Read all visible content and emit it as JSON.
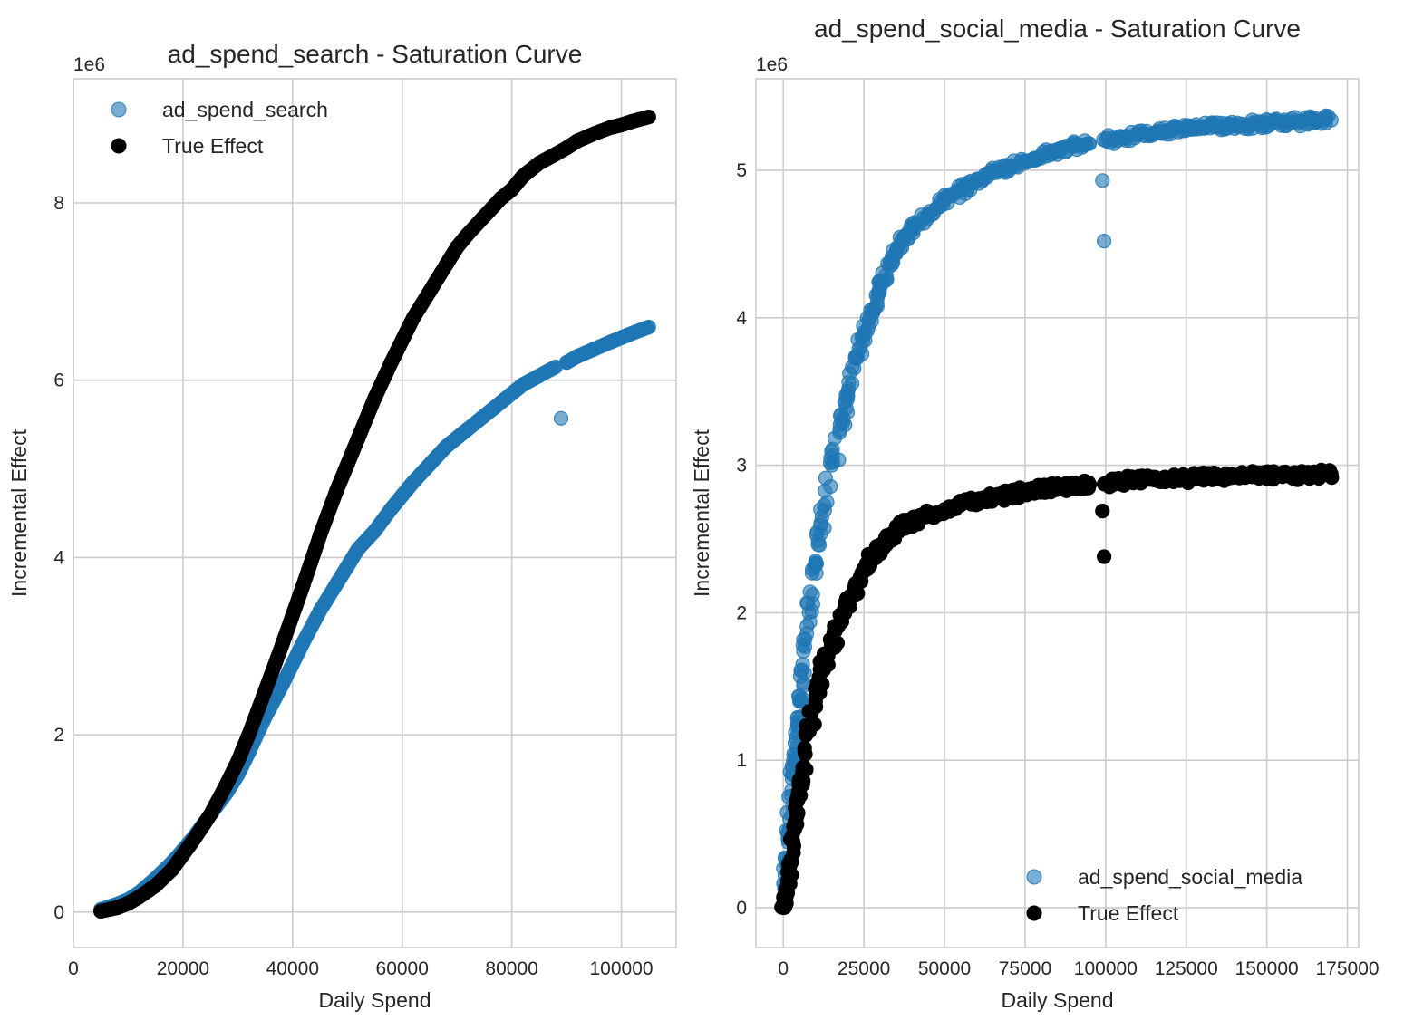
{
  "chart_data": [
    {
      "type": "scatter",
      "title": "ad_spend_search - Saturation Curve",
      "xlabel": "Daily Spend",
      "ylabel": "Incremental Effect",
      "y_offset_label": "1e6",
      "xlim": [
        0,
        110000
      ],
      "ylim": [
        -400000,
        9400000
      ],
      "xticks": [
        0,
        20000,
        40000,
        60000,
        80000,
        100000
      ],
      "xtick_labels": [
        "0",
        "20000",
        "40000",
        "60000",
        "80000",
        "100000"
      ],
      "yticks": [
        0,
        2000000,
        4000000,
        6000000,
        8000000
      ],
      "ytick_labels": [
        "0",
        "2",
        "4",
        "6",
        "8"
      ],
      "grid": true,
      "legend_position": "upper-left",
      "series": [
        {
          "name": "ad_spend_search",
          "color": "#1f77b4",
          "style": "blue-scatter",
          "points": [
            [
              5000,
              30000
            ],
            [
              8000,
              90000
            ],
            [
              10000,
              140000
            ],
            [
              12000,
              220000
            ],
            [
              15000,
              380000
            ],
            [
              18000,
              560000
            ],
            [
              20000,
              700000
            ],
            [
              22000,
              850000
            ],
            [
              25000,
              1100000
            ],
            [
              28000,
              1350000
            ],
            [
              30000,
              1550000
            ],
            [
              32000,
              1800000
            ],
            [
              35000,
              2200000
            ],
            [
              38000,
              2550000
            ],
            [
              40000,
              2800000
            ],
            [
              42000,
              3050000
            ],
            [
              45000,
              3400000
            ],
            [
              48000,
              3700000
            ],
            [
              50000,
              3900000
            ],
            [
              52000,
              4100000
            ],
            [
              55000,
              4300000
            ],
            [
              58000,
              4550000
            ],
            [
              60000,
              4700000
            ],
            [
              62000,
              4850000
            ],
            [
              65000,
              5050000
            ],
            [
              68000,
              5250000
            ],
            [
              70000,
              5350000
            ],
            [
              72000,
              5450000
            ],
            [
              75000,
              5600000
            ],
            [
              78000,
              5750000
            ],
            [
              80000,
              5850000
            ],
            [
              82000,
              5950000
            ],
            [
              85000,
              6050000
            ],
            [
              88000,
              6150000
            ],
            [
              89000,
              5570000
            ],
            [
              90000,
              6200000
            ],
            [
              92000,
              6270000
            ],
            [
              95000,
              6350000
            ],
            [
              98000,
              6430000
            ],
            [
              100000,
              6480000
            ],
            [
              102000,
              6530000
            ],
            [
              105000,
              6600000
            ]
          ]
        },
        {
          "name": "True Effect",
          "color": "#000000",
          "style": "black-scatter",
          "points": [
            [
              5000,
              10000
            ],
            [
              8000,
              50000
            ],
            [
              10000,
              100000
            ],
            [
              12000,
              170000
            ],
            [
              15000,
              300000
            ],
            [
              18000,
              480000
            ],
            [
              20000,
              650000
            ],
            [
              22000,
              820000
            ],
            [
              25000,
              1100000
            ],
            [
              28000,
              1450000
            ],
            [
              30000,
              1700000
            ],
            [
              32000,
              2000000
            ],
            [
              35000,
              2500000
            ],
            [
              38000,
              3000000
            ],
            [
              40000,
              3350000
            ],
            [
              42000,
              3700000
            ],
            [
              45000,
              4250000
            ],
            [
              48000,
              4750000
            ],
            [
              50000,
              5050000
            ],
            [
              52000,
              5350000
            ],
            [
              55000,
              5800000
            ],
            [
              58000,
              6200000
            ],
            [
              60000,
              6450000
            ],
            [
              62000,
              6700000
            ],
            [
              65000,
              7000000
            ],
            [
              68000,
              7300000
            ],
            [
              70000,
              7500000
            ],
            [
              72000,
              7650000
            ],
            [
              75000,
              7850000
            ],
            [
              78000,
              8050000
            ],
            [
              80000,
              8150000
            ],
            [
              82000,
              8300000
            ],
            [
              85000,
              8450000
            ],
            [
              88000,
              8550000
            ],
            [
              90000,
              8620000
            ],
            [
              92000,
              8700000
            ],
            [
              95000,
              8780000
            ],
            [
              98000,
              8850000
            ],
            [
              100000,
              8880000
            ],
            [
              102000,
              8920000
            ],
            [
              105000,
              8970000
            ]
          ]
        }
      ]
    },
    {
      "type": "scatter",
      "title": "ad_spend_social_media - Saturation Curve",
      "xlabel": "Daily Spend",
      "ylabel": "Incremental Effect",
      "y_offset_label": "1e6",
      "xlim": [
        -8500,
        178500
      ],
      "ylim": [
        -270000,
        5620000
      ],
      "xticks": [
        0,
        25000,
        50000,
        75000,
        100000,
        125000,
        150000,
        175000
      ],
      "xtick_labels": [
        "0",
        "25000",
        "50000",
        "75000",
        "100000",
        "125000",
        "150000",
        "175000"
      ],
      "yticks": [
        0,
        1000000,
        2000000,
        3000000,
        4000000,
        5000000
      ],
      "ytick_labels": [
        "0",
        "1",
        "2",
        "3",
        "4",
        "5"
      ],
      "grid": true,
      "legend_position": "lower-right",
      "series": [
        {
          "name": "ad_spend_social_media",
          "color": "#1f77b4",
          "style": "blue-scatter",
          "points": [
            [
              0,
              0
            ],
            [
              1000,
              300000
            ],
            [
              2000,
              600000
            ],
            [
              3000,
              900000
            ],
            [
              4000,
              1150000
            ],
            [
              5000,
              1400000
            ],
            [
              6000,
              1650000
            ],
            [
              8000,
              2000000
            ],
            [
              10000,
              2350000
            ],
            [
              12000,
              2650000
            ],
            [
              15000,
              3000000
            ],
            [
              18000,
              3300000
            ],
            [
              20000,
              3500000
            ],
            [
              23000,
              3750000
            ],
            [
              25000,
              3900000
            ],
            [
              28000,
              4050000
            ],
            [
              30000,
              4200000
            ],
            [
              33000,
              4350000
            ],
            [
              35000,
              4450000
            ],
            [
              38000,
              4550000
            ],
            [
              40000,
              4600000
            ],
            [
              45000,
              4700000
            ],
            [
              50000,
              4800000
            ],
            [
              55000,
              4870000
            ],
            [
              60000,
              4930000
            ],
            [
              65000,
              4980000
            ],
            [
              70000,
              5030000
            ],
            [
              75000,
              5060000
            ],
            [
              80000,
              5100000
            ],
            [
              85000,
              5130000
            ],
            [
              90000,
              5160000
            ],
            [
              95000,
              5180000
            ],
            [
              99000,
              4930000
            ],
            [
              99500,
              4520000
            ],
            [
              100000,
              5200000
            ],
            [
              105000,
              5220000
            ],
            [
              110000,
              5240000
            ],
            [
              115000,
              5250000
            ],
            [
              120000,
              5270000
            ],
            [
              125000,
              5280000
            ],
            [
              130000,
              5290000
            ],
            [
              135000,
              5300000
            ],
            [
              140000,
              5310000
            ],
            [
              145000,
              5310000
            ],
            [
              150000,
              5320000
            ],
            [
              155000,
              5330000
            ],
            [
              160000,
              5330000
            ],
            [
              165000,
              5340000
            ],
            [
              170000,
              5340000
            ]
          ]
        },
        {
          "name": "True Effect",
          "color": "#000000",
          "style": "black-scatter",
          "points": [
            [
              0,
              0
            ],
            [
              1000,
              100000
            ],
            [
              2000,
              250000
            ],
            [
              3000,
              450000
            ],
            [
              4000,
              650000
            ],
            [
              5000,
              800000
            ],
            [
              6000,
              950000
            ],
            [
              8000,
              1200000
            ],
            [
              10000,
              1400000
            ],
            [
              12000,
              1600000
            ],
            [
              15000,
              1800000
            ],
            [
              18000,
              1950000
            ],
            [
              20000,
              2050000
            ],
            [
              23000,
              2200000
            ],
            [
              25000,
              2300000
            ],
            [
              28000,
              2380000
            ],
            [
              30000,
              2450000
            ],
            [
              33000,
              2500000
            ],
            [
              35000,
              2550000
            ],
            [
              38000,
              2600000
            ],
            [
              40000,
              2620000
            ],
            [
              45000,
              2660000
            ],
            [
              50000,
              2700000
            ],
            [
              55000,
              2730000
            ],
            [
              60000,
              2760000
            ],
            [
              65000,
              2780000
            ],
            [
              70000,
              2800000
            ],
            [
              75000,
              2820000
            ],
            [
              80000,
              2840000
            ],
            [
              85000,
              2850000
            ],
            [
              90000,
              2860000
            ],
            [
              95000,
              2870000
            ],
            [
              99000,
              2690000
            ],
            [
              99500,
              2380000
            ],
            [
              100000,
              2880000
            ],
            [
              105000,
              2890000
            ],
            [
              110000,
              2900000
            ],
            [
              115000,
              2900000
            ],
            [
              120000,
              2910000
            ],
            [
              125000,
              2910000
            ],
            [
              130000,
              2920000
            ],
            [
              135000,
              2920000
            ],
            [
              140000,
              2920000
            ],
            [
              145000,
              2930000
            ],
            [
              150000,
              2930000
            ],
            [
              155000,
              2930000
            ],
            [
              160000,
              2930000
            ],
            [
              165000,
              2940000
            ],
            [
              170000,
              2940000
            ]
          ]
        }
      ]
    }
  ]
}
